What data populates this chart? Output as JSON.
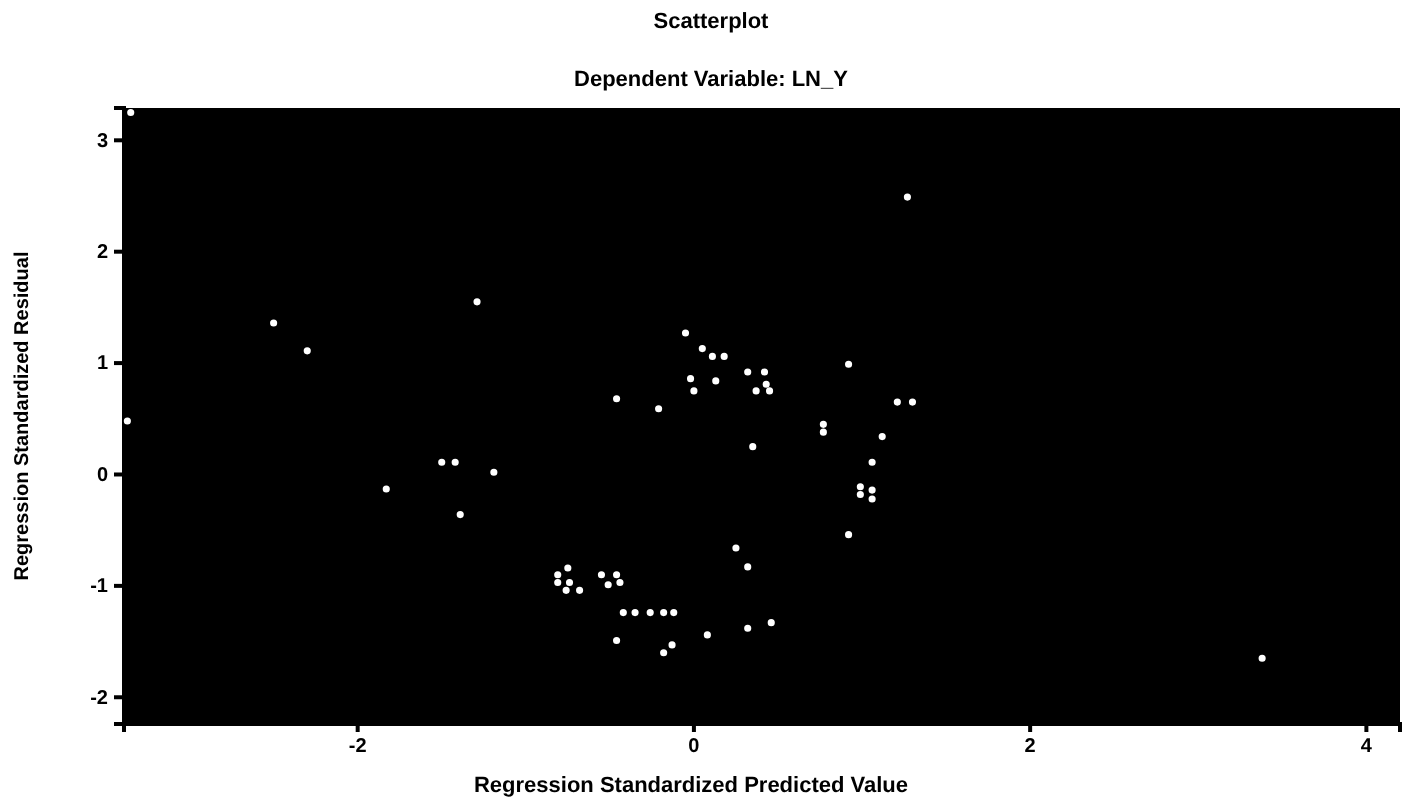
{
  "chart_data": {
    "type": "scatter",
    "title": "Scatterplot",
    "subtitle": "Dependent Variable: LN_Y",
    "xlabel": "Regression Standardized Predicted Value",
    "ylabel": "Regression Standardized Residual",
    "xlim": [
      -3.39,
      4.2
    ],
    "ylim": [
      -2.24,
      3.29
    ],
    "xticks": [
      -2,
      0,
      2,
      4
    ],
    "yticks": [
      -2,
      -1,
      0,
      1,
      2,
      3
    ],
    "grid": false,
    "marker": "circle",
    "series": [
      {
        "color": "#ffffff",
        "x": [
          -3.37,
          -3.35,
          -2.5,
          -2.3,
          -1.29,
          -1.83,
          -1.5,
          -1.42,
          -1.39,
          -1.19,
          -0.81,
          1.27,
          -0.05,
          0.05,
          0.11,
          0.18,
          -0.02,
          0,
          0.13,
          0.32,
          0.42,
          0.43,
          0.37,
          0.45,
          -0.46,
          -0.21,
          0.92,
          1.21,
          1.3,
          0.77,
          0.77,
          1.12,
          0.35,
          1.06,
          0.99,
          1.06,
          0.99,
          1.06,
          0.92,
          0.25,
          0.32,
          -0.75,
          -0.81,
          -0.74,
          -0.76,
          -0.68,
          -0.55,
          -0.46,
          -0.51,
          -0.44,
          -0.42,
          -0.35,
          -0.26,
          -0.18,
          -0.12,
          -0.46,
          0.08,
          -0.13,
          -0.18,
          0.32,
          0.46,
          3.38
        ],
        "values": [
          0.48,
          3.25,
          1.36,
          1.11,
          1.55,
          -0.13,
          0.11,
          0.11,
          -0.36,
          0.02,
          -0.9,
          2.49,
          1.27,
          1.13,
          1.06,
          1.06,
          0.86,
          0.75,
          0.84,
          0.92,
          0.92,
          0.81,
          0.75,
          0.75,
          0.68,
          0.59,
          0.99,
          0.65,
          0.65,
          0.45,
          0.38,
          0.34,
          0.25,
          0.11,
          -0.11,
          -0.14,
          -0.18,
          -0.22,
          -0.54,
          -0.66,
          -0.83,
          -0.84,
          -0.97,
          -0.97,
          -1.04,
          -1.04,
          -0.9,
          -0.9,
          -0.99,
          -0.97,
          -1.24,
          -1.24,
          -1.24,
          -1.24,
          -1.24,
          -1.49,
          -1.44,
          -1.53,
          -1.6,
          -1.38,
          -1.33,
          -1.65
        ]
      }
    ]
  }
}
